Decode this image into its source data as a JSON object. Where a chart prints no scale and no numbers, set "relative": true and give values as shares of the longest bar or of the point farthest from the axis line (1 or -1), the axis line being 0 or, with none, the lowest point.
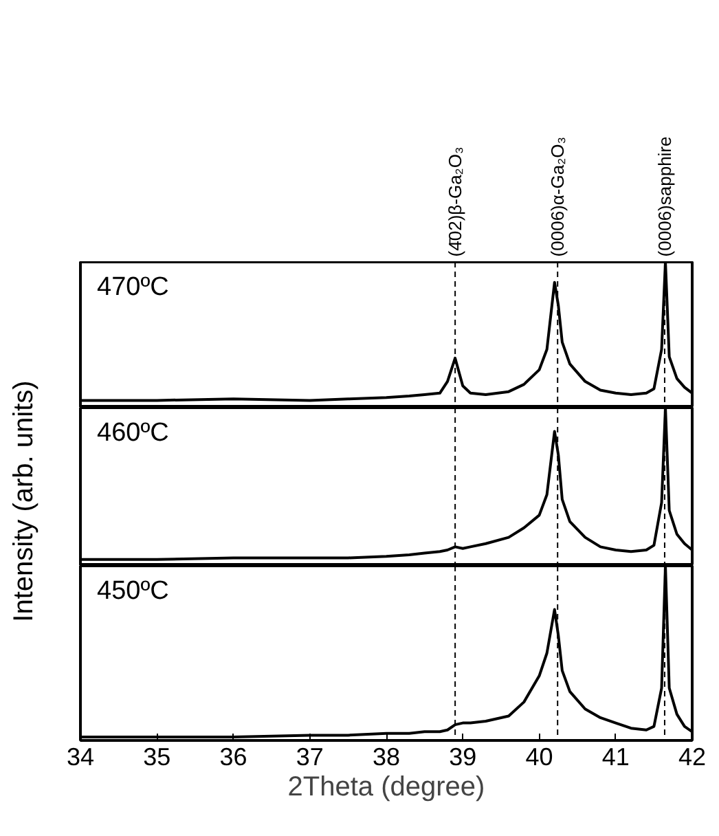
{
  "chart_data": [
    {
      "type": "line",
      "title": "470ºC",
      "relative": true,
      "xlim": [
        34,
        42
      ],
      "tick_labels": false,
      "line_style": "solid",
      "x": [
        34,
        35,
        36,
        37,
        37.5,
        38,
        38.3,
        38.5,
        38.7,
        38.8,
        38.9,
        39.0,
        39.1,
        39.3,
        39.6,
        39.8,
        40.0,
        40.1,
        40.2,
        40.25,
        40.3,
        40.4,
        40.6,
        40.8,
        41.0,
        41.2,
        41.4,
        41.5,
        41.6,
        41.65,
        41.7,
        41.8,
        41.9,
        42
      ],
      "series": [
        {
          "color": "#000000",
          "values": [
            0.05,
            0.05,
            0.06,
            0.05,
            0.06,
            0.07,
            0.08,
            0.09,
            0.1,
            0.18,
            0.34,
            0.15,
            0.1,
            0.09,
            0.11,
            0.16,
            0.26,
            0.4,
            0.86,
            0.7,
            0.45,
            0.3,
            0.18,
            0.12,
            0.1,
            0.09,
            0.1,
            0.13,
            0.4,
            1,
            0.35,
            0.2,
            0.14,
            0.1
          ]
        }
      ],
      "ref_lines": [
        {
          "axis": "x",
          "value": 38.9,
          "label": "(4̄02)β-Ga₂O₃",
          "line_style": "dashed"
        },
        {
          "axis": "x",
          "value": 40.24,
          "label": "(0006)α-Ga₂O₃",
          "line_style": "dashed"
        },
        {
          "axis": "x",
          "value": 41.64,
          "label": "(0006)sapphire",
          "line_style": "dashed"
        }
      ]
    },
    {
      "type": "line",
      "title": "460ºC",
      "ylabel": "Intensity (arb. units)",
      "relative": true,
      "xlim": [
        34,
        42
      ],
      "tick_labels": false,
      "line_style": "solid",
      "x": [
        34,
        35,
        36,
        37,
        37.5,
        38,
        38.3,
        38.5,
        38.7,
        38.8,
        38.9,
        39.0,
        39.1,
        39.3,
        39.6,
        39.8,
        40.0,
        40.1,
        40.2,
        40.25,
        40.3,
        40.4,
        40.6,
        40.8,
        41.0,
        41.2,
        41.4,
        41.5,
        41.6,
        41.65,
        41.7,
        41.8,
        41.9,
        42
      ],
      "series": [
        {
          "color": "#000000",
          "values": [
            0.04,
            0.04,
            0.05,
            0.05,
            0.05,
            0.06,
            0.07,
            0.08,
            0.09,
            0.1,
            0.12,
            0.11,
            0.12,
            0.14,
            0.18,
            0.24,
            0.32,
            0.45,
            0.85,
            0.7,
            0.42,
            0.28,
            0.18,
            0.12,
            0.1,
            0.09,
            0.1,
            0.13,
            0.4,
            1,
            0.35,
            0.2,
            0.14,
            0.1
          ]
        }
      ],
      "ref_lines": [
        {
          "axis": "x",
          "value": 38.9,
          "label": null,
          "line_style": "dashed"
        },
        {
          "axis": "x",
          "value": 40.24,
          "label": null,
          "line_style": "dashed"
        },
        {
          "axis": "x",
          "value": 41.64,
          "label": null,
          "line_style": "dashed"
        }
      ]
    },
    {
      "type": "line",
      "title": "450ºC",
      "xlabel": "2Theta (degree)",
      "relative": true,
      "xlim": [
        34,
        42
      ],
      "xticks": [
        34,
        35,
        36,
        37,
        38,
        39,
        40,
        41,
        42
      ],
      "tick_labels": "x",
      "line_style": "solid",
      "x": [
        34,
        35,
        36,
        37,
        37.5,
        38,
        38.3,
        38.5,
        38.7,
        38.8,
        38.9,
        39.0,
        39.1,
        39.3,
        39.6,
        39.8,
        40.0,
        40.1,
        40.2,
        40.25,
        40.3,
        40.4,
        40.6,
        40.8,
        41.0,
        41.2,
        41.4,
        41.5,
        41.6,
        41.65,
        41.7,
        41.8,
        41.9,
        42
      ],
      "series": [
        {
          "color": "#000000",
          "values": [
            0.02,
            0.02,
            0.02,
            0.03,
            0.03,
            0.04,
            0.04,
            0.05,
            0.05,
            0.06,
            0.09,
            0.1,
            0.1,
            0.11,
            0.14,
            0.22,
            0.37,
            0.5,
            0.75,
            0.6,
            0.4,
            0.28,
            0.18,
            0.13,
            0.1,
            0.07,
            0.06,
            0.08,
            0.3,
            1,
            0.3,
            0.15,
            0.08,
            0.05
          ]
        }
      ],
      "ref_lines": [
        {
          "axis": "x",
          "value": 38.9,
          "label": null,
          "line_style": "dashed"
        },
        {
          "axis": "x",
          "value": 40.24,
          "label": null,
          "line_style": "dashed"
        },
        {
          "axis": "x",
          "value": 41.64,
          "label": null,
          "line_style": "dashed"
        }
      ]
    }
  ]
}
